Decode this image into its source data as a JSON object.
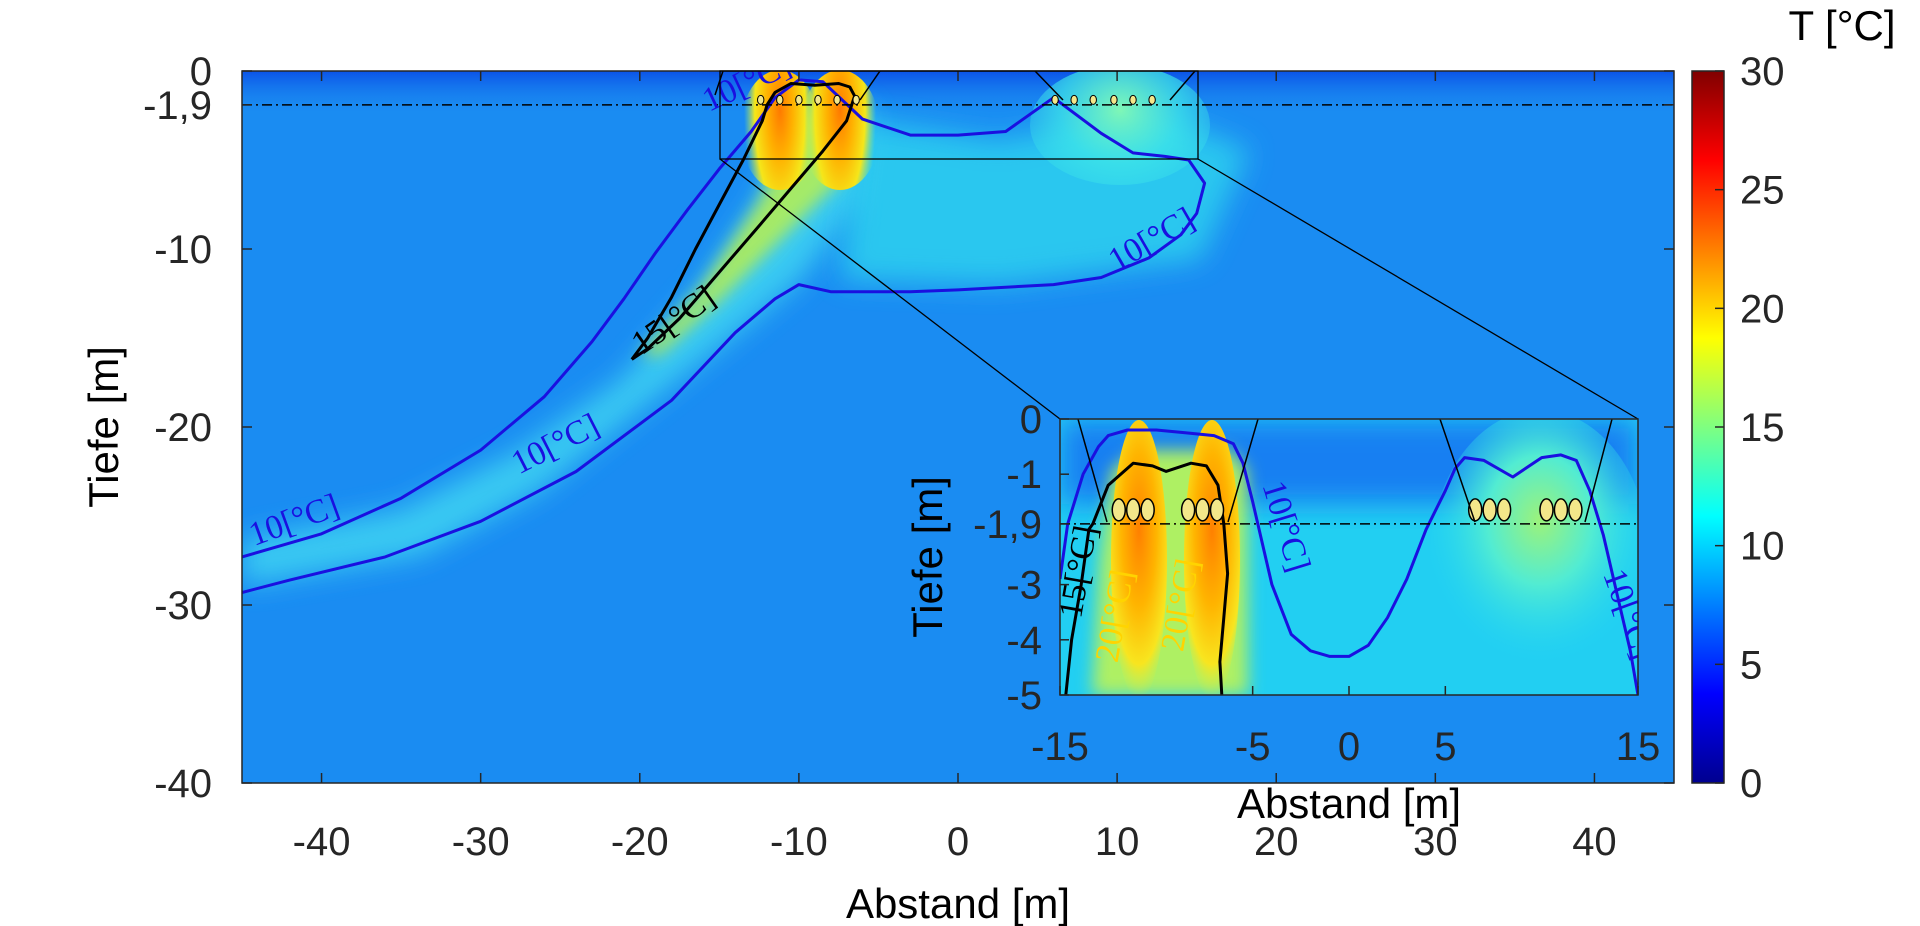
{
  "chart_data": {
    "type": "heatmap",
    "colormap": "jet",
    "colorbar": {
      "title": "T [°C]",
      "range": [
        0,
        30
      ],
      "ticks": [
        "0",
        "5",
        "10",
        "15",
        "20",
        "25",
        "30"
      ]
    },
    "main_plot": {
      "xlabel": "Abstand [m]",
      "ylabel": "Tiefe [m]",
      "xlim": [
        -45,
        45
      ],
      "ylim": [
        -40,
        0
      ],
      "x_ticks": [
        -40,
        -30,
        -20,
        -10,
        0,
        10,
        20,
        30,
        40
      ],
      "x_tick_labels": [
        "-40",
        "-30",
        "-20",
        "-10",
        "0",
        "10",
        "20",
        "30",
        "40"
      ],
      "y_ticks": [
        0,
        -1.9,
        -10,
        -20,
        -30,
        -40
      ],
      "y_tick_labels": [
        "0",
        "-1,9",
        "-10",
        "-20",
        "-30",
        "-40"
      ],
      "reference_line_depth": -1.9,
      "background_temperature": 7,
      "contours": [
        {
          "level": 10,
          "color": "#1a10e0",
          "x": [
            -45,
            -42,
            -36,
            -30,
            -24,
            -18,
            -14,
            -11.5,
            -10,
            -8,
            -6,
            -3,
            0,
            6,
            9,
            12,
            14,
            15,
            15.5,
            14.5,
            13,
            11,
            9,
            6,
            3,
            0,
            -3,
            -6,
            -8.5,
            -10,
            -11.5,
            -13,
            -15,
            -17,
            -19,
            -21,
            -23,
            -26,
            -30,
            -35,
            -40,
            -45
          ],
          "y": [
            -29.3,
            -28.6,
            -27.3,
            -25.3,
            -22.5,
            -18.5,
            -14.7,
            -12.8,
            -12,
            -12.4,
            -12.4,
            -12.4,
            -12.3,
            -12,
            -11.6,
            -10.5,
            -9.2,
            -8,
            -6.3,
            -5,
            -4.8,
            -4.6,
            -3.5,
            -1.5,
            -3.4,
            -3.6,
            -3.6,
            -2.7,
            -0.6,
            -0.5,
            -1.5,
            -3.4,
            -5.5,
            -7.8,
            -10.2,
            -12.8,
            -15.2,
            -18.3,
            -21.3,
            -24,
            -26,
            -27.3
          ]
        },
        {
          "level": 15,
          "color": "#000000",
          "x": [
            -20.5,
            -19.5,
            -17.5,
            -15,
            -12.5,
            -10.5,
            -8.5,
            -7,
            -6.5,
            -6.8,
            -7.5,
            -9,
            -10.5,
            -11.5,
            -12,
            -12.3,
            -13.5,
            -15,
            -16.5,
            -18,
            -19.5,
            -20.5
          ],
          "y": [
            -16.2,
            -15.6,
            -13.9,
            -11.3,
            -8.7,
            -6.6,
            -4.5,
            -2.8,
            -1.4,
            -0.9,
            -0.7,
            -0.8,
            -0.7,
            -1.2,
            -1.9,
            -2.8,
            -5,
            -7.5,
            -10,
            -12.7,
            -15,
            -16.2
          ]
        }
      ],
      "contour_labels": [
        {
          "text": "10[°C]",
          "x": -41.5,
          "y": -25.8,
          "angle": -20,
          "color": "#1a10e0"
        },
        {
          "text": "10[°C]",
          "x": -25,
          "y": -21.5,
          "angle": -27,
          "color": "#1a10e0"
        },
        {
          "text": "10[°C]",
          "x": 12.5,
          "y": -10,
          "angle": -30,
          "color": "#1a10e0"
        },
        {
          "text": "10[°C]",
          "x": -13,
          "y": -1.2,
          "angle": -25,
          "color": "#1a10e0"
        },
        {
          "text": "15[°C]",
          "x": -17.5,
          "y": -14.5,
          "angle": -35,
          "color": "#000000"
        }
      ],
      "cable_groups_x": [
        -11.2,
        -7.6,
        7.3,
        11
      ]
    },
    "inset": {
      "xlabel": "Abstand [m]",
      "ylabel": "Tiefe [m]",
      "xlim": [
        -15,
        15
      ],
      "ylim": [
        -5,
        0
      ],
      "x_ticks": [
        -15,
        -5,
        0,
        5,
        15
      ],
      "x_tick_labels": [
        "-15",
        "-5",
        "0",
        "5",
        "15"
      ],
      "y_ticks": [
        0,
        -1,
        -1.9,
        -3,
        -4,
        -5
      ],
      "y_tick_labels": [
        "0",
        "-1",
        "-1,9",
        "-3",
        "-4",
        "-5"
      ],
      "reference_line_depth": -1.9,
      "contours": [
        {
          "level": 10,
          "color": "#1a10e0",
          "x": [
            -15,
            -14.6,
            -13.8,
            -13,
            -12.5,
            -11.5,
            -10,
            -8.5,
            -7,
            -6,
            -5.5,
            -5,
            -4,
            -3,
            -2,
            -1,
            0,
            1,
            2,
            3,
            4,
            5,
            5.5,
            6,
            7,
            8.5,
            10,
            11,
            11.8,
            12.5,
            13.2,
            14,
            14.6,
            15
          ],
          "y": [
            -2.9,
            -1.9,
            -1,
            -0.5,
            -0.3,
            -0.2,
            -0.2,
            -0.25,
            -0.3,
            -0.45,
            -0.8,
            -1.5,
            -3,
            -3.9,
            -4.2,
            -4.3,
            -4.3,
            -4.1,
            -3.6,
            -2.9,
            -2,
            -1.3,
            -0.9,
            -0.7,
            -0.75,
            -1.05,
            -0.7,
            -0.65,
            -0.75,
            -1.3,
            -2.1,
            -3.3,
            -4.2,
            -5
          ]
        },
        {
          "level": 15,
          "color": "#000000",
          "x": [
            -14.7,
            -14.4,
            -13.9,
            -13.5,
            -13.3,
            -12.5,
            -11.2,
            -10.2,
            -9.5,
            -8.2,
            -7.4,
            -6.8,
            -6.5,
            -6.3,
            -6.5,
            -6.7,
            -6.6
          ],
          "y": [
            -5,
            -4,
            -3,
            -2,
            -1.9,
            -1.2,
            -0.8,
            -0.85,
            -0.95,
            -0.8,
            -0.85,
            -1.2,
            -1.9,
            -2.8,
            -3.6,
            -4.4,
            -5
          ]
        }
      ],
      "contour_labels": [
        {
          "text": "10[°C]",
          "x": -3.8,
          "y": -2,
          "angle": 73,
          "color": "#1a10e0"
        },
        {
          "text": "10[°C]",
          "x": 14,
          "y": -3.6,
          "angle": 70,
          "color": "#1a10e0"
        },
        {
          "text": "15[°C]",
          "x": -13.5,
          "y": -2.8,
          "angle": -80,
          "color": "#000000"
        },
        {
          "text": "20[°C]",
          "x": -11.6,
          "y": -3.6,
          "angle": -80,
          "color": "#ffd400"
        },
        {
          "text": "20[°C]",
          "x": -8.2,
          "y": -3.4,
          "angle": -80,
          "color": "#ffd400"
        }
      ],
      "cable_groups_x": [
        -11.2,
        -7.6,
        7.3,
        11
      ]
    }
  }
}
